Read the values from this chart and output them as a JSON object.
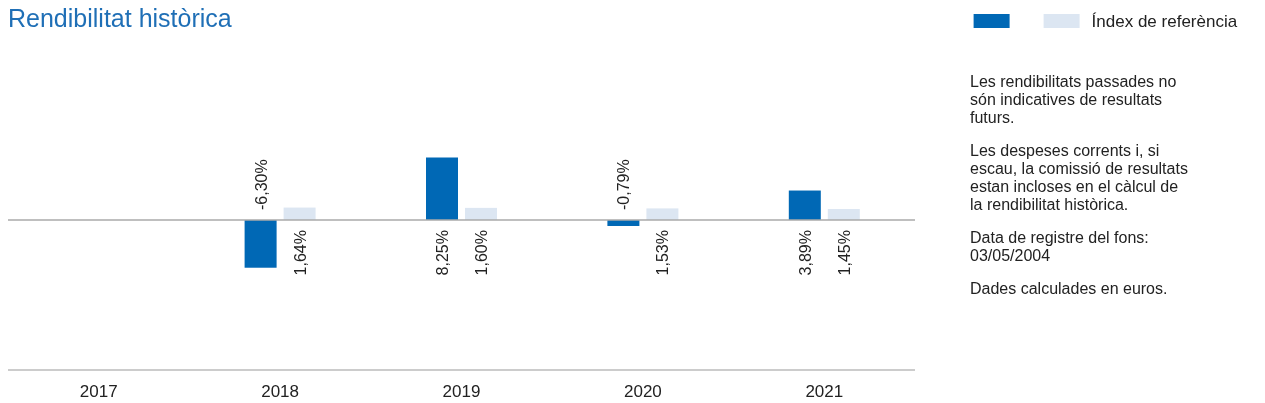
{
  "chart_data": {
    "type": "bar",
    "title": "Rendibilitat històrica",
    "categories": [
      "2017",
      "2018",
      "2019",
      "2020",
      "2021"
    ],
    "series": [
      {
        "color": "#0068b5",
        "values": [
          null,
          -6.3,
          8.25,
          -0.79,
          3.89
        ],
        "value_labels": [
          null,
          "-6,30%",
          "8,25%",
          "-0,79%",
          "3,89%"
        ]
      },
      {
        "name": "Índex de referència",
        "color": "#dce6f2",
        "values": [
          null,
          1.64,
          1.6,
          1.53,
          1.45
        ],
        "value_labels": [
          null,
          "1,64%",
          "1,60%",
          "1,53%",
          "1,45%"
        ]
      }
    ],
    "legend": "top right",
    "annotations": [
      "Les rendibilitats passades no són indicatives de resultats futurs.",
      "Les despeses corrents i, si escau, la comissió de resultats estan incloses en el càlcul de la rendibilitat històrica.",
      "Data de registre del fons: 03/05/2004",
      "Dades calculades en euros."
    ]
  }
}
